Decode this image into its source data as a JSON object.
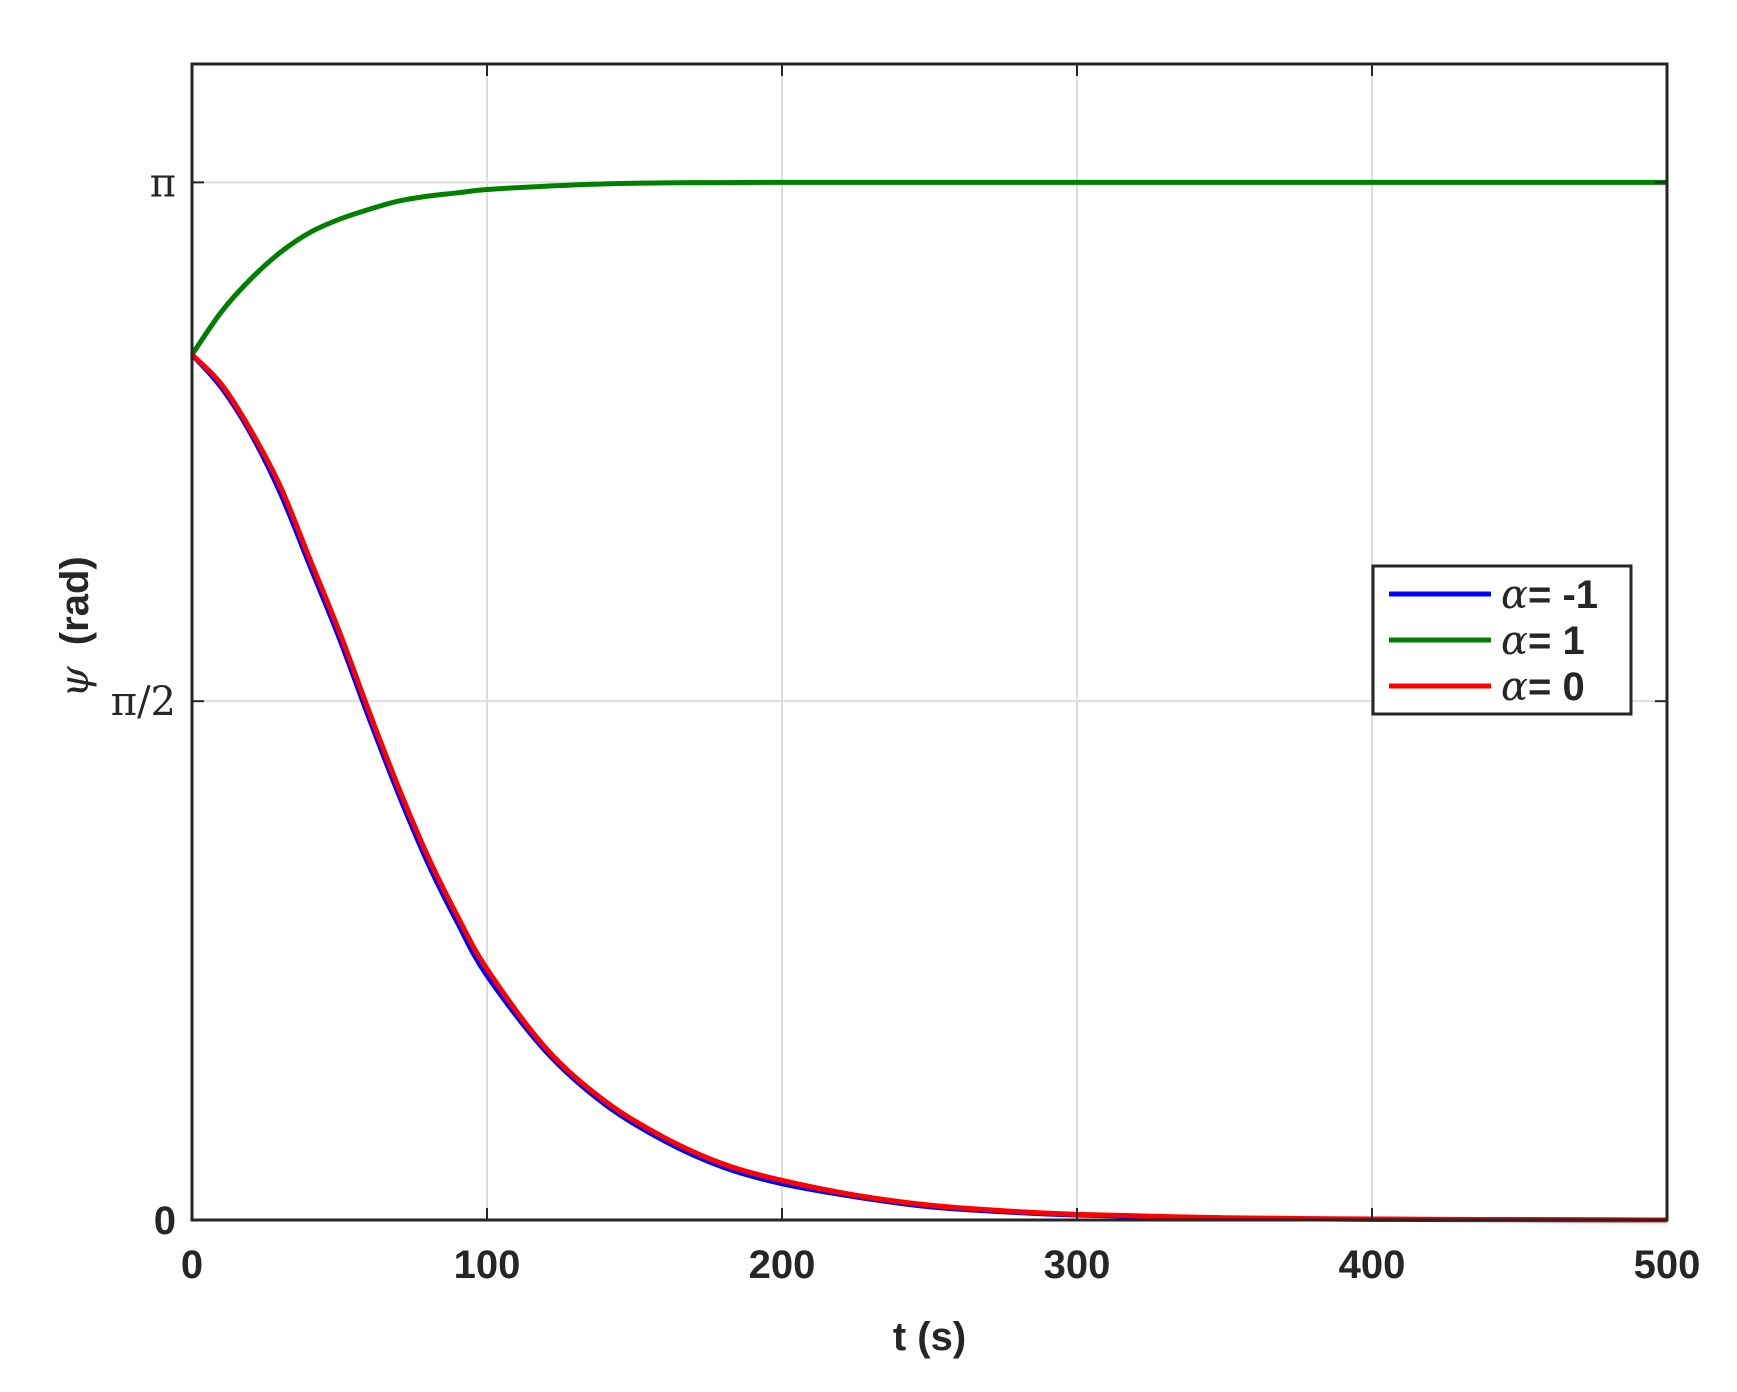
{
  "chart_data": {
    "type": "line",
    "xlabel": "t (s)",
    "ylabel_symbol": "ψ",
    "ylabel_unit": "(rad)",
    "xlim": [
      0,
      500
    ],
    "ylim": [
      0,
      3.5
    ],
    "xticks": [
      {
        "value": 0,
        "label": "0"
      },
      {
        "value": 100,
        "label": "100"
      },
      {
        "value": 200,
        "label": "200"
      },
      {
        "value": 300,
        "label": "300"
      },
      {
        "value": 400,
        "label": "400"
      },
      {
        "value": 500,
        "label": "500"
      }
    ],
    "yticks": [
      {
        "value": 0,
        "label": "0"
      },
      {
        "value": 1.5708,
        "label": "π/2"
      },
      {
        "value": 3.1416,
        "label": "π"
      }
    ],
    "grid": true,
    "legend_position": "right",
    "x": [
      0,
      10,
      20,
      30,
      40,
      50,
      60,
      70,
      80,
      90,
      100,
      120,
      140,
      160,
      180,
      200,
      225,
      250,
      275,
      300,
      350,
      400,
      450,
      500
    ],
    "series": [
      {
        "name_symbol": "α",
        "name_value": "= -1",
        "color": "#0000ff",
        "values": [
          2.62,
          2.52,
          2.38,
          2.2,
          1.98,
          1.76,
          1.52,
          1.29,
          1.08,
          0.9,
          0.74,
          0.51,
          0.35,
          0.24,
          0.16,
          0.11,
          0.07,
          0.04,
          0.025,
          0.015,
          0.006,
          0.002,
          0.001,
          0.0
        ]
      },
      {
        "name_symbol": "α",
        "name_value": "=  1",
        "color": "#008000",
        "values": [
          2.62,
          2.75,
          2.85,
          2.93,
          2.99,
          3.03,
          3.06,
          3.085,
          3.1,
          3.11,
          3.12,
          3.13,
          3.137,
          3.14,
          3.141,
          3.1416,
          3.1416,
          3.1416,
          3.1416,
          3.1416,
          3.1416,
          3.1416,
          3.1416,
          3.1416
        ]
      },
      {
        "name_symbol": "α",
        "name_value": "=  0",
        "color": "#ff0000",
        "values": [
          2.62,
          2.53,
          2.39,
          2.22,
          2.0,
          1.78,
          1.54,
          1.31,
          1.1,
          0.92,
          0.76,
          0.52,
          0.36,
          0.25,
          0.17,
          0.12,
          0.075,
          0.045,
          0.028,
          0.017,
          0.007,
          0.003,
          0.001,
          0.0
        ]
      }
    ]
  }
}
